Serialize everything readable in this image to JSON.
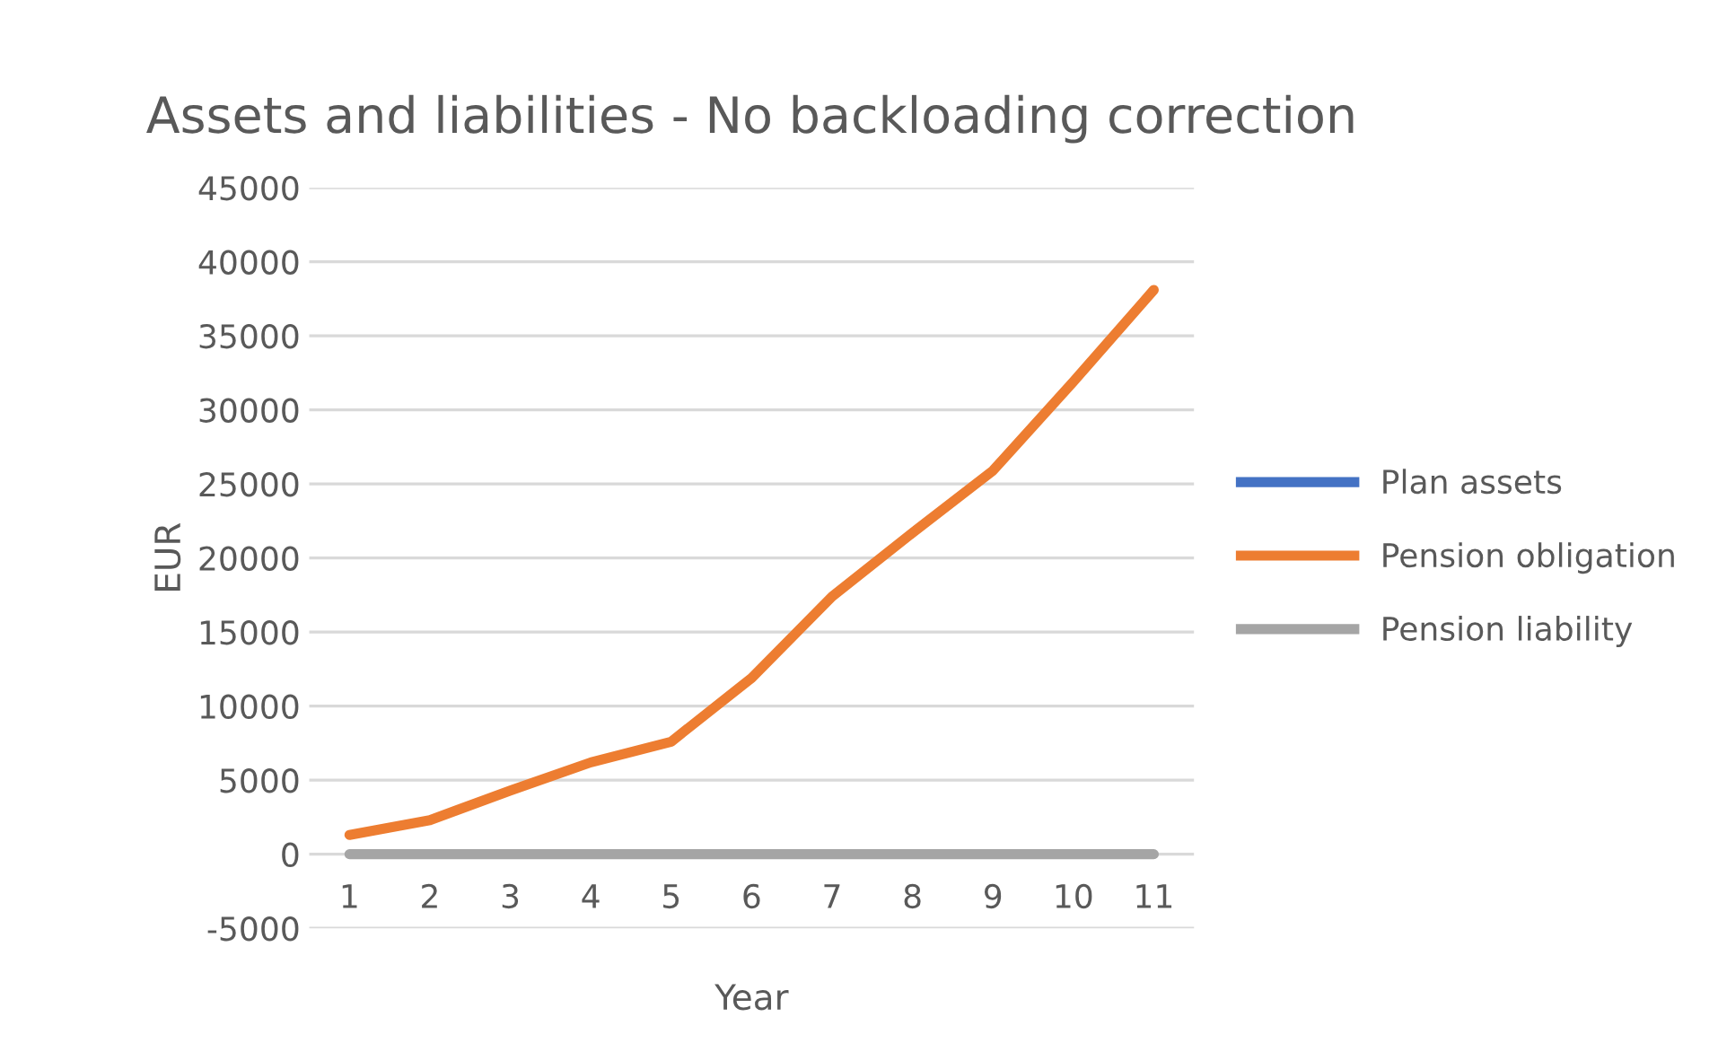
{
  "chart_data": {
    "type": "line",
    "title": "Assets and liabilities - No backloading correction",
    "xlabel": "Year",
    "ylabel": "EUR",
    "categories": [
      "1",
      "2",
      "3",
      "4",
      "5",
      "6",
      "7",
      "8",
      "9",
      "10",
      "11"
    ],
    "series": [
      {
        "name": "Plan assets",
        "color": "#4472c4",
        "values": [
          null,
          null,
          null,
          null,
          null,
          null,
          null,
          null,
          null,
          null,
          null
        ]
      },
      {
        "name": "Pension obligation",
        "color": "#ed7d31",
        "values": [
          1300,
          2300,
          4300,
          6200,
          7600,
          11900,
          17400,
          21700,
          25900,
          31900,
          38100
        ]
      },
      {
        "name": "Pension liability",
        "color": "#a5a5a5",
        "values": [
          0,
          0,
          0,
          0,
          0,
          0,
          0,
          0,
          0,
          0,
          0
        ]
      }
    ],
    "ylim": [
      -5000,
      45000
    ],
    "yticks": [
      -5000,
      0,
      5000,
      10000,
      15000,
      20000,
      25000,
      30000,
      35000,
      40000,
      45000
    ],
    "grid": "y",
    "legend": "right",
    "marker": "none",
    "line_style": "solid"
  }
}
